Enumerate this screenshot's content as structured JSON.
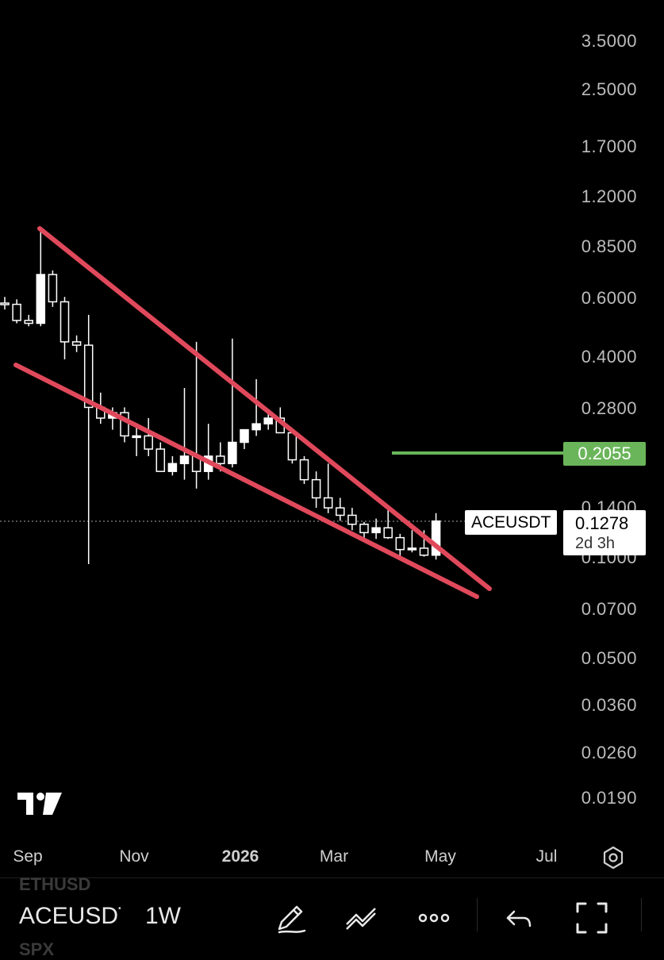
{
  "chart_data": {
    "type": "candlestick",
    "symbol": "ACEUSDT",
    "interval": "1W",
    "y_scale": "log",
    "ylim": [
      0.016,
      4.2
    ],
    "y_ticks": [
      "3.5000",
      "2.5000",
      "1.7000",
      "1.2000",
      "0.8500",
      "0.6000",
      "0.4000",
      "0.2800",
      "0.1400",
      "0.1000",
      "0.0700",
      "0.0500",
      "0.0360",
      "0.0260",
      "0.0190"
    ],
    "x_ticks": [
      {
        "label": "Sep",
        "bold": false
      },
      {
        "label": "Nov",
        "bold": false
      },
      {
        "label": "2026",
        "bold": true
      },
      {
        "label": "Mar",
        "bold": false
      },
      {
        "label": "May",
        "bold": false
      },
      {
        "label": "Jul",
        "bold": false
      }
    ],
    "candles": [
      {
        "o": 0.575,
        "h": 0.6,
        "l": 0.55,
        "c": 0.57
      },
      {
        "o": 0.57,
        "h": 0.59,
        "l": 0.5,
        "c": 0.51
      },
      {
        "o": 0.51,
        "h": 0.53,
        "l": 0.49,
        "c": 0.5
      },
      {
        "o": 0.5,
        "h": 0.96,
        "l": 0.49,
        "c": 0.7
      },
      {
        "o": 0.7,
        "h": 0.72,
        "l": 0.56,
        "c": 0.58
      },
      {
        "o": 0.58,
        "h": 0.6,
        "l": 0.39,
        "c": 0.44
      },
      {
        "o": 0.44,
        "h": 0.46,
        "l": 0.41,
        "c": 0.43
      },
      {
        "o": 0.43,
        "h": 0.53,
        "l": 0.095,
        "c": 0.28
      },
      {
        "o": 0.28,
        "h": 0.31,
        "l": 0.25,
        "c": 0.26
      },
      {
        "o": 0.26,
        "h": 0.28,
        "l": 0.24,
        "c": 0.27
      },
      {
        "o": 0.27,
        "h": 0.28,
        "l": 0.22,
        "c": 0.23
      },
      {
        "o": 0.23,
        "h": 0.25,
        "l": 0.2,
        "c": 0.23
      },
      {
        "o": 0.23,
        "h": 0.26,
        "l": 0.2,
        "c": 0.21
      },
      {
        "o": 0.21,
        "h": 0.22,
        "l": 0.18,
        "c": 0.18
      },
      {
        "o": 0.18,
        "h": 0.2,
        "l": 0.175,
        "c": 0.19
      },
      {
        "o": 0.19,
        "h": 0.32,
        "l": 0.17,
        "c": 0.2
      },
      {
        "o": 0.2,
        "h": 0.44,
        "l": 0.16,
        "c": 0.18
      },
      {
        "o": 0.18,
        "h": 0.25,
        "l": 0.17,
        "c": 0.2
      },
      {
        "o": 0.2,
        "h": 0.22,
        "l": 0.18,
        "c": 0.19
      },
      {
        "o": 0.19,
        "h": 0.45,
        "l": 0.185,
        "c": 0.22
      },
      {
        "o": 0.22,
        "h": 0.24,
        "l": 0.21,
        "c": 0.24
      },
      {
        "o": 0.24,
        "h": 0.34,
        "l": 0.23,
        "c": 0.25
      },
      {
        "o": 0.25,
        "h": 0.27,
        "l": 0.24,
        "c": 0.26
      },
      {
        "o": 0.26,
        "h": 0.28,
        "l": 0.24,
        "c": 0.235
      },
      {
        "o": 0.235,
        "h": 0.24,
        "l": 0.19,
        "c": 0.195
      },
      {
        "o": 0.195,
        "h": 0.2,
        "l": 0.165,
        "c": 0.17
      },
      {
        "o": 0.17,
        "h": 0.18,
        "l": 0.14,
        "c": 0.15
      },
      {
        "o": 0.15,
        "h": 0.19,
        "l": 0.135,
        "c": 0.14
      },
      {
        "o": 0.14,
        "h": 0.15,
        "l": 0.128,
        "c": 0.133
      },
      {
        "o": 0.133,
        "h": 0.14,
        "l": 0.12,
        "c": 0.125
      },
      {
        "o": 0.125,
        "h": 0.127,
        "l": 0.112,
        "c": 0.118
      },
      {
        "o": 0.118,
        "h": 0.13,
        "l": 0.113,
        "c": 0.122
      },
      {
        "o": 0.122,
        "h": 0.14,
        "l": 0.113,
        "c": 0.114
      },
      {
        "o": 0.114,
        "h": 0.117,
        "l": 0.1,
        "c": 0.105
      },
      {
        "o": 0.105,
        "h": 0.12,
        "l": 0.103,
        "c": 0.106
      },
      {
        "o": 0.106,
        "h": 0.12,
        "l": 0.1,
        "c": 0.101
      },
      {
        "o": 0.101,
        "h": 0.135,
        "l": 0.098,
        "c": 0.1278
      }
    ],
    "wedge_lines_color": "#e0495b",
    "target_line": {
      "value": "0.2055",
      "color": "#6ab55a"
    },
    "last_price": {
      "symbol": "ACEUSDT",
      "value": "0.1278",
      "countdown": "2d 3h"
    }
  },
  "toolbar": {
    "symbol": "ACEUSDT",
    "interval": "1W",
    "faded_above": "ETHUSD",
    "faded_below": "SPX",
    "icons": [
      "pencil-icon",
      "trendline-icon",
      "more-icon",
      "undo-icon",
      "fullscreen-icon"
    ]
  }
}
